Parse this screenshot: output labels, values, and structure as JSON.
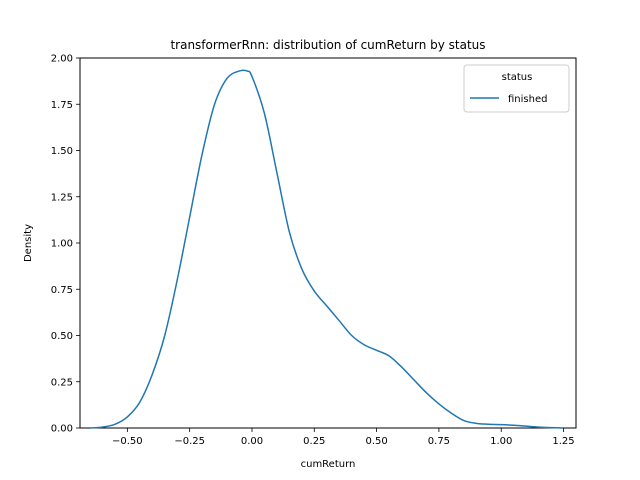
{
  "chart_data": {
    "type": "line",
    "title": "transformerRnn: distribution of cumReturn by status",
    "xlabel": "cumReturn",
    "ylabel": "Density",
    "xlim": [
      -0.69,
      1.3
    ],
    "ylim": [
      0,
      2.0
    ],
    "xticks": [
      -0.5,
      -0.25,
      0.0,
      0.25,
      0.5,
      0.75,
      1.0,
      1.25
    ],
    "xtick_labels": [
      "−0.50",
      "−0.25",
      "0.00",
      "0.25",
      "0.50",
      "0.75",
      "1.00",
      "1.25"
    ],
    "yticks": [
      0.0,
      0.25,
      0.5,
      0.75,
      1.0,
      1.25,
      1.5,
      1.75,
      2.0
    ],
    "ytick_labels": [
      "0.00",
      "0.25",
      "0.50",
      "0.75",
      "1.00",
      "1.25",
      "1.50",
      "1.75",
      "2.00"
    ],
    "grid": false,
    "legend": {
      "title": "status",
      "placement": "top-right",
      "entries": [
        "finished"
      ]
    },
    "series": [
      {
        "name": "finished",
        "color": "#1f77b4",
        "x": [
          -0.65,
          -0.6,
          -0.55,
          -0.5,
          -0.45,
          -0.4,
          -0.35,
          -0.3,
          -0.25,
          -0.2,
          -0.15,
          -0.1,
          -0.05,
          -0.02,
          0.0,
          0.05,
          0.1,
          0.15,
          0.2,
          0.25,
          0.3,
          0.35,
          0.4,
          0.45,
          0.5,
          0.55,
          0.6,
          0.65,
          0.7,
          0.75,
          0.8,
          0.85,
          0.9,
          0.95,
          1.0,
          1.05,
          1.1,
          1.15,
          1.2,
          1.25
        ],
        "y": [
          0.0,
          0.005,
          0.02,
          0.06,
          0.14,
          0.29,
          0.5,
          0.8,
          1.14,
          1.48,
          1.75,
          1.89,
          1.93,
          1.93,
          1.9,
          1.7,
          1.38,
          1.06,
          0.86,
          0.74,
          0.66,
          0.58,
          0.5,
          0.45,
          0.42,
          0.39,
          0.33,
          0.26,
          0.19,
          0.13,
          0.08,
          0.04,
          0.025,
          0.02,
          0.018,
          0.015,
          0.01,
          0.005,
          0.002,
          0.0
        ]
      }
    ]
  }
}
